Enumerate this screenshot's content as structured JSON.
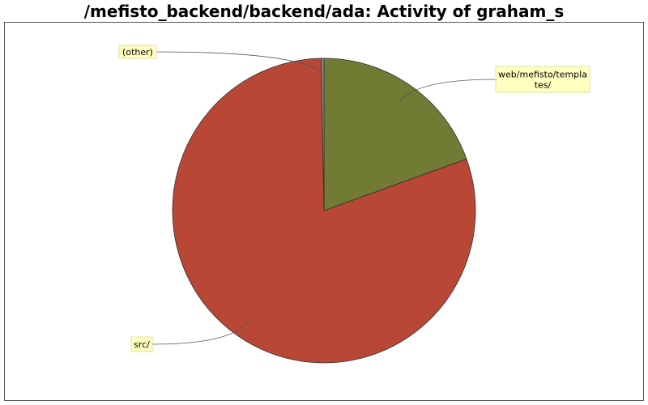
{
  "chart_data": {
    "type": "pie",
    "title": "/mefisto_backend/backend/ada: Activity of graham_s",
    "start_angle_deg": 90,
    "direction": "clockwise",
    "slices": [
      {
        "label": "web/mefisto/templates/",
        "label_lines": [
          "web/mefisto/templa",
          "tes/"
        ],
        "value": 19.5,
        "color": "#717b34"
      },
      {
        "label": "src/",
        "label_lines": [
          "src/"
        ],
        "value": 80.2,
        "color": "#b84735"
      },
      {
        "label": "(other)",
        "label_lines": [
          "(other)"
        ],
        "value": 0.3,
        "color": "#888888"
      }
    ],
    "colors": {
      "background": "#ffffff",
      "frame": "#555555",
      "label_box": "#ffffc0",
      "label_border": "#e0e0a0",
      "leader": "#555555",
      "slice_outline": "#333333"
    }
  }
}
